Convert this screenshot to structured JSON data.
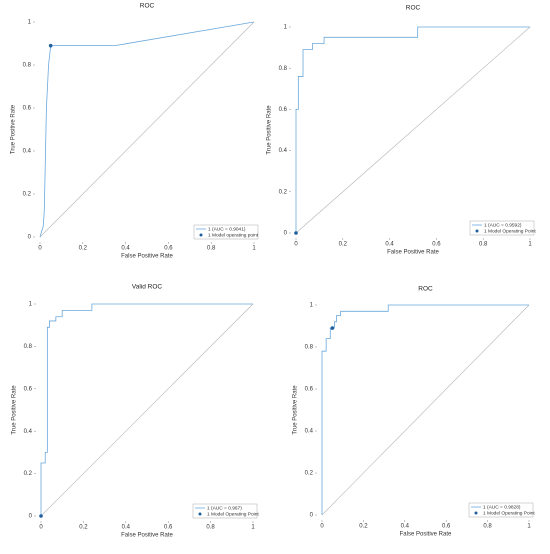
{
  "chart_data": [
    {
      "type": "line",
      "title": "ROC",
      "x_label": "False Positive Rate",
      "y_label": "True Positive Rate",
      "xlim": [
        0,
        1
      ],
      "ylim": [
        0,
        1
      ],
      "xticks": [
        0,
        0.2,
        0.4,
        0.6,
        0.8,
        1
      ],
      "yticks": [
        0,
        0.2,
        0.4,
        0.6,
        0.8,
        1
      ],
      "legend": "lower right",
      "series": [
        {
          "name": "1 (AUC = 0.9041)",
          "color": "#6aa8dc",
          "x": [
            0,
            0.015,
            0.02,
            0.03,
            0.04,
            0.05,
            0.35,
            1
          ],
          "values": [
            0,
            0.05,
            0.12,
            0.6,
            0.8,
            0.89,
            0.89,
            1
          ]
        }
      ],
      "points": {
        "name": "1 Model operating point",
        "color": "#1f5f9e",
        "x": [
          0.05
        ],
        "values": [
          0.89
        ]
      },
      "reference": {
        "color": "#b5b5b5",
        "x": [
          0,
          1
        ],
        "values": [
          0,
          1
        ]
      }
    },
    {
      "type": "line",
      "title": "ROC",
      "x_label": "False Positive Rate",
      "y_label": "True Positive Rate",
      "xlim": [
        0,
        1
      ],
      "ylim": [
        0,
        1
      ],
      "xticks": [
        0,
        0.2,
        0.4,
        0.6,
        0.8,
        1
      ],
      "yticks": [
        0,
        0.2,
        0.4,
        0.6,
        0.8,
        1
      ],
      "legend": "lower right",
      "series": [
        {
          "name": "1 (AUC = 0.9592)",
          "color": "#6aa8dc",
          "x": [
            0,
            0,
            0.01,
            0.01,
            0.03,
            0.03,
            0.07,
            0.07,
            0.12,
            0.12,
            0.52,
            0.52,
            1
          ],
          "values": [
            0,
            0.6,
            0.6,
            0.76,
            0.76,
            0.89,
            0.89,
            0.92,
            0.92,
            0.95,
            0.95,
            1,
            1
          ]
        }
      ],
      "points": {
        "name": "1 Model Operating Point",
        "color": "#1f5f9e",
        "x": [
          0
        ],
        "values": [
          0
        ]
      },
      "reference": {
        "color": "#b5b5b5",
        "x": [
          0,
          1
        ],
        "values": [
          0,
          1
        ]
      }
    },
    {
      "type": "line",
      "title": "Valid ROC",
      "x_label": "False Positive Rate",
      "y_label": "True Positive Rate",
      "xlim": [
        0,
        1
      ],
      "ylim": [
        0,
        1
      ],
      "xticks": [
        0,
        0.2,
        0.4,
        0.6,
        0.8,
        1
      ],
      "yticks": [
        0,
        0.2,
        0.4,
        0.6,
        0.8,
        1
      ],
      "legend": "lower right",
      "series": [
        {
          "name": "1 (AUC = 0.967)",
          "color": "#6aa8dc",
          "x": [
            0,
            0,
            0.02,
            0.02,
            0.03,
            0.03,
            0.04,
            0.04,
            0.07,
            0.07,
            0.1,
            0.1,
            0.24,
            0.24,
            1
          ],
          "values": [
            0,
            0.25,
            0.25,
            0.3,
            0.3,
            0.89,
            0.89,
            0.92,
            0.92,
            0.94,
            0.94,
            0.97,
            0.97,
            1,
            1
          ]
        }
      ],
      "points": {
        "name": "1 Model Operating Point",
        "color": "#1f5f9e",
        "x": [
          0
        ],
        "values": [
          0
        ]
      },
      "reference": {
        "color": "#b5b5b5",
        "x": [
          0,
          1
        ],
        "values": [
          0,
          1
        ]
      }
    },
    {
      "type": "line",
      "title": "ROC",
      "x_label": "False Positive Rate",
      "y_label": "True Positive Rate",
      "xlim": [
        0,
        1
      ],
      "ylim": [
        0,
        1
      ],
      "xticks": [
        0,
        0.2,
        0.4,
        0.6,
        0.8,
        1
      ],
      "yticks": [
        0,
        0.2,
        0.4,
        0.6,
        0.8,
        1
      ],
      "legend": "lower right",
      "series": [
        {
          "name": "1 (AUC = 0.9828)",
          "color": "#6aa8dc",
          "x": [
            0,
            0,
            0.02,
            0.02,
            0.04,
            0.04,
            0.06,
            0.06,
            0.07,
            0.07,
            0.09,
            0.09,
            0.32,
            0.32,
            1
          ],
          "values": [
            0,
            0.78,
            0.78,
            0.84,
            0.84,
            0.89,
            0.89,
            0.92,
            0.92,
            0.95,
            0.95,
            0.97,
            0.97,
            1,
            1
          ]
        }
      ],
      "points": {
        "name": "1 Model Operating Point",
        "color": "#1f5f9e",
        "x": [
          0.05
        ],
        "values": [
          0.89
        ]
      },
      "reference": {
        "color": "#b5b5b5",
        "x": [
          0,
          1
        ],
        "values": [
          0,
          1
        ]
      }
    }
  ]
}
